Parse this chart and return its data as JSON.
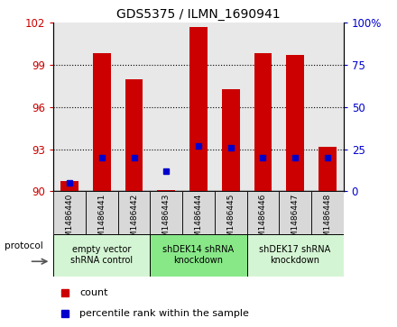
{
  "title": "GDS5375 / ILMN_1690941",
  "samples": [
    "GSM1486440",
    "GSM1486441",
    "GSM1486442",
    "GSM1486443",
    "GSM1486444",
    "GSM1486445",
    "GSM1486446",
    "GSM1486447",
    "GSM1486448"
  ],
  "counts": [
    90.7,
    99.85,
    98.0,
    90.1,
    101.7,
    97.3,
    99.85,
    99.7,
    93.2
  ],
  "percentiles": [
    5.0,
    20.0,
    20.0,
    12.0,
    27.0,
    26.0,
    20.0,
    20.0,
    20.0
  ],
  "ylim_left": [
    90,
    102
  ],
  "ylim_right": [
    0,
    100
  ],
  "yticks_left": [
    90,
    93,
    96,
    99,
    102
  ],
  "yticks_right": [
    0,
    25,
    50,
    75,
    100
  ],
  "ytick_labels_left": [
    "90",
    "93",
    "96",
    "99",
    "102"
  ],
  "ytick_labels_right": [
    "0",
    "25",
    "50",
    "75",
    "100%"
  ],
  "bar_color": "#cc0000",
  "dot_color": "#0000cc",
  "bar_bottom": 90,
  "groups": [
    {
      "label": "empty vector\nshRNA control",
      "start": 0,
      "end": 3,
      "color": "#d4f5d4"
    },
    {
      "label": "shDEK14 shRNA\nknockdown",
      "start": 3,
      "end": 6,
      "color": "#88e888"
    },
    {
      "label": "shDEK17 shRNA\nknockdown",
      "start": 6,
      "end": 9,
      "color": "#d4f5d4"
    }
  ],
  "protocol_label": "protocol",
  "legend_count": "count",
  "legend_percentile": "percentile rank within the sample",
  "plot_bg_color": "#e8e8e8",
  "tick_box_color": "#d8d8d8",
  "grid_yticks": [
    93,
    96,
    99
  ]
}
